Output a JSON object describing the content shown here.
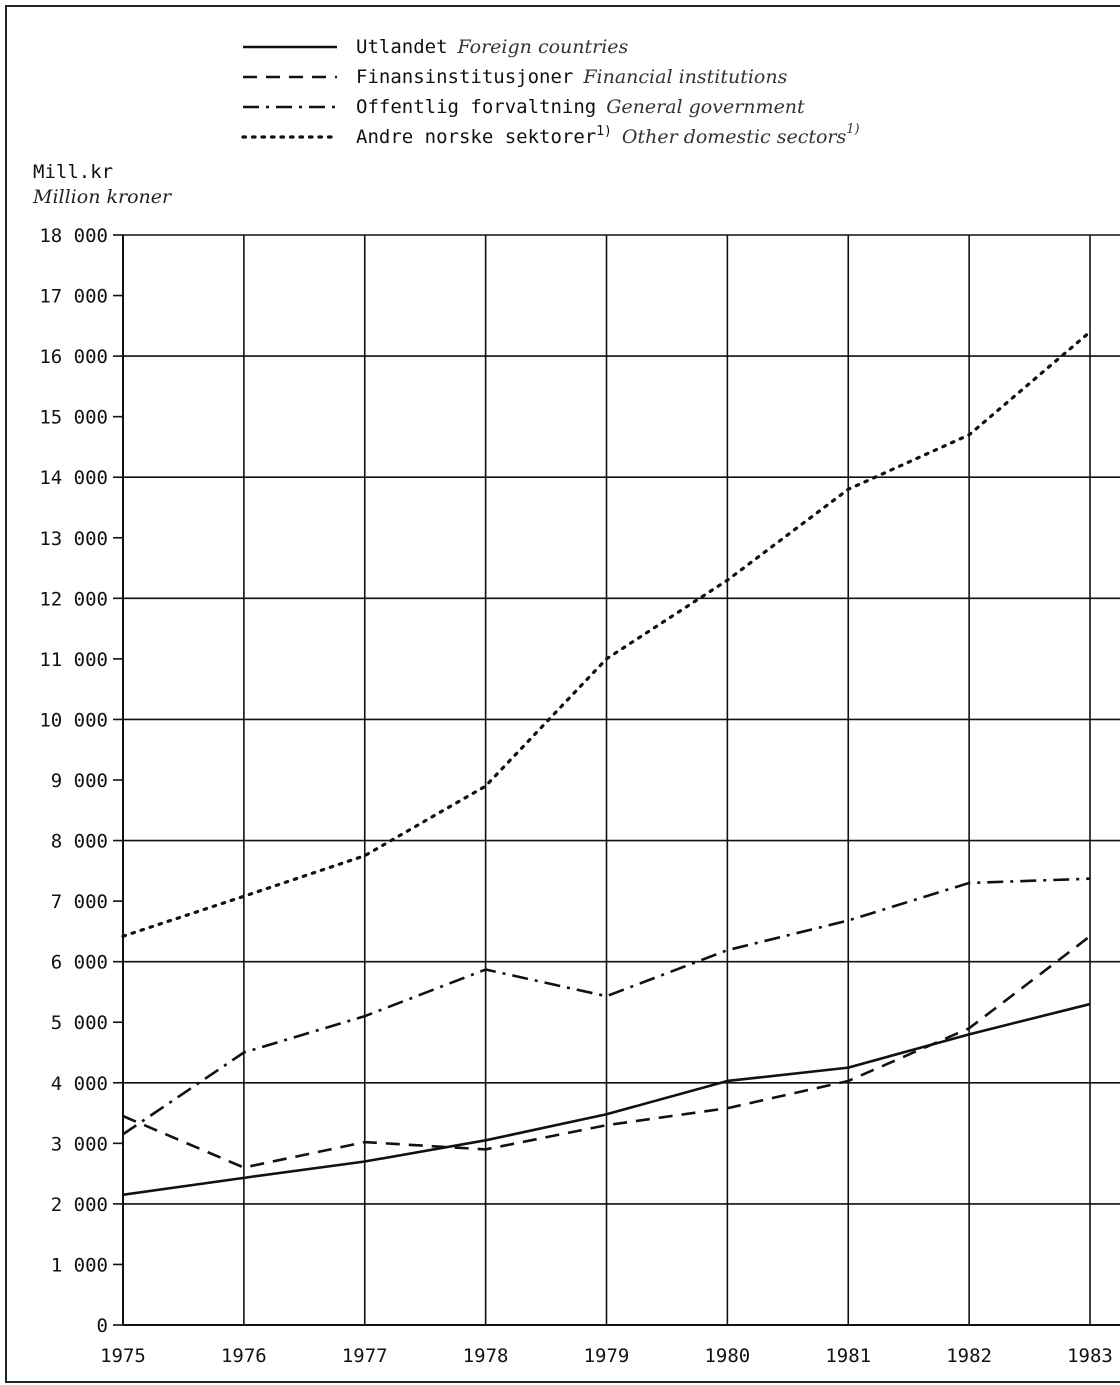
{
  "colors": {
    "ink": "#111111",
    "background": "#ffffff"
  },
  "unit": {
    "no": "Mill.kr",
    "en": "Million kroner"
  },
  "legend": [
    {
      "no": "Utlandet",
      "en": "Foreign countries",
      "sup_no": "",
      "sup_en": "",
      "style": "solid"
    },
    {
      "no": "Finansinstitusjoner",
      "en": "Financial institutions",
      "sup_no": "",
      "sup_en": "",
      "style": "dashed"
    },
    {
      "no": "Offentlig forvaltning",
      "en": "General government",
      "sup_no": "",
      "sup_en": "",
      "style": "dashdot"
    },
    {
      "no": "Andre norske sektorer",
      "en": "Other domestic sectors",
      "sup_no": "1)",
      "sup_en": "1)",
      "style": "dotted"
    }
  ],
  "chart_data": {
    "type": "line",
    "x": [
      "1975",
      "1976",
      "1977",
      "1978",
      "1979",
      "1980",
      "1981",
      "1982",
      "1983"
    ],
    "ylim": [
      0,
      18000
    ],
    "yticks": [
      0,
      1000,
      2000,
      3000,
      4000,
      5000,
      6000,
      7000,
      8000,
      9000,
      10000,
      11000,
      12000,
      13000,
      14000,
      15000,
      16000,
      17000,
      18000
    ],
    "ytick_labels": [
      "0",
      "1 000",
      "2 000",
      "3 000",
      "4 000",
      "5 000",
      "6 000",
      "7 000",
      "8 000",
      "9 000",
      "10 000",
      "11 000",
      "12 000",
      "13 000",
      "14 000",
      "15 000",
      "16 000",
      "17 000",
      "18 000"
    ],
    "ygrid_major": [
      2000,
      4000,
      6000,
      8000,
      10000,
      12000,
      14000,
      16000,
      18000
    ],
    "grid": true,
    "legend_position": "top",
    "series": [
      {
        "name": "Utlandet Foreign countries",
        "style": "solid",
        "values": [
          2150,
          2430,
          2700,
          3050,
          3480,
          4030,
          4250,
          4800,
          5300
        ]
      },
      {
        "name": "Finansinstitusjoner Financial institutions",
        "style": "dashed",
        "values": [
          3450,
          2600,
          3020,
          2900,
          3300,
          3580,
          4030,
          4900,
          6420
        ]
      },
      {
        "name": "Offentlig forvaltning General government",
        "style": "dashdot",
        "values": [
          3150,
          4500,
          5100,
          5870,
          5430,
          6190,
          6680,
          7300,
          7370
        ]
      },
      {
        "name": "Andre norske sektorer1) Other domestic sectors1)",
        "style": "dotted",
        "values": [
          6420,
          7080,
          7750,
          8900,
          11000,
          12300,
          13800,
          14700,
          16400
        ]
      }
    ]
  }
}
